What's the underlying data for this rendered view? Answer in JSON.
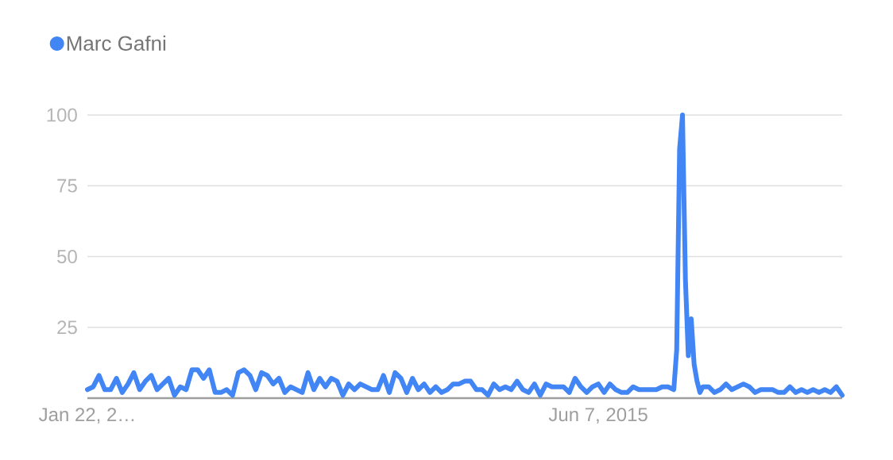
{
  "chart_data": {
    "type": "line",
    "x": [
      "2012-01-22",
      "2012-02-05",
      "2012-02-19",
      "2012-03-04",
      "2012-03-18",
      "2012-04-01",
      "2012-04-15",
      "2012-04-29",
      "2012-05-13",
      "2012-05-27",
      "2012-06-10",
      "2012-06-24",
      "2012-07-08",
      "2012-07-22",
      "2012-08-05",
      "2012-08-19",
      "2012-09-02",
      "2012-09-16",
      "2012-09-30",
      "2012-10-14",
      "2012-10-28",
      "2012-11-11",
      "2012-11-25",
      "2012-12-09",
      "2012-12-23",
      "2013-01-06",
      "2013-01-20",
      "2013-02-03",
      "2013-02-17",
      "2013-03-03",
      "2013-03-17",
      "2013-03-31",
      "2013-04-14",
      "2013-04-28",
      "2013-05-12",
      "2013-05-26",
      "2013-06-09",
      "2013-06-23",
      "2013-07-07",
      "2013-07-21",
      "2013-08-04",
      "2013-08-18",
      "2013-09-01",
      "2013-09-15",
      "2013-09-29",
      "2013-10-13",
      "2013-10-27",
      "2013-11-10",
      "2013-11-24",
      "2013-12-08",
      "2013-12-22",
      "2014-01-05",
      "2014-01-19",
      "2014-02-02",
      "2014-02-16",
      "2014-03-02",
      "2014-03-16",
      "2014-03-30",
      "2014-04-13",
      "2014-04-27",
      "2014-05-11",
      "2014-05-25",
      "2014-06-08",
      "2014-06-22",
      "2014-07-06",
      "2014-07-20",
      "2014-08-03",
      "2014-08-17",
      "2014-08-31",
      "2014-09-14",
      "2014-09-28",
      "2014-10-12",
      "2014-10-26",
      "2014-11-09",
      "2014-11-23",
      "2014-12-07",
      "2014-12-21",
      "2015-01-04",
      "2015-01-18",
      "2015-02-01",
      "2015-02-15",
      "2015-03-01",
      "2015-03-15",
      "2015-03-29",
      "2015-04-12",
      "2015-04-26",
      "2015-05-10",
      "2015-05-24",
      "2015-06-07",
      "2015-06-21",
      "2015-07-05",
      "2015-07-19",
      "2015-08-02",
      "2015-08-16",
      "2015-08-30",
      "2015-09-13",
      "2015-09-27",
      "2015-10-11",
      "2015-10-25",
      "2015-11-08",
      "2015-11-22",
      "2015-12-06",
      "2015-12-13",
      "2015-12-20",
      "2015-12-27",
      "2016-01-03",
      "2016-01-10",
      "2016-01-17",
      "2016-01-24",
      "2016-01-31",
      "2016-02-07",
      "2016-02-14",
      "2016-02-28",
      "2016-03-13",
      "2016-03-27",
      "2016-04-10",
      "2016-04-24",
      "2016-05-08",
      "2016-05-22",
      "2016-06-05",
      "2016-06-19",
      "2016-07-03",
      "2016-07-17",
      "2016-07-31",
      "2016-08-14",
      "2016-08-28",
      "2016-09-11",
      "2016-09-25",
      "2016-10-09",
      "2016-10-23",
      "2016-11-06",
      "2016-11-20",
      "2016-12-04",
      "2016-12-18",
      "2017-01-01",
      "2017-01-15"
    ],
    "series": [
      {
        "name": "Marc Gafni",
        "color": "#4285f4",
        "values": [
          3,
          4,
          8,
          3,
          3,
          7,
          2,
          5,
          9,
          3,
          6,
          8,
          3,
          5,
          7,
          1,
          4,
          3,
          10,
          10,
          7,
          10,
          2,
          2,
          3,
          1,
          9,
          10,
          8,
          3,
          9,
          8,
          5,
          7,
          2,
          4,
          3,
          2,
          9,
          3,
          7,
          4,
          7,
          6,
          1,
          5,
          3,
          5,
          4,
          3,
          3,
          8,
          2,
          9,
          7,
          2,
          7,
          3,
          5,
          2,
          4,
          2,
          3,
          5,
          5,
          6,
          6,
          3,
          3,
          1,
          5,
          3,
          4,
          3,
          6,
          3,
          2,
          5,
          1,
          5,
          4,
          4,
          4,
          2,
          7,
          4,
          2,
          4,
          5,
          2,
          5,
          3,
          2,
          2,
          4,
          3,
          3,
          3,
          3,
          4,
          4,
          3,
          17,
          88,
          100,
          42,
          15,
          28,
          12,
          6,
          2,
          4,
          4,
          2,
          3,
          5,
          3,
          4,
          5,
          4,
          2,
          3,
          3,
          3,
          2,
          2,
          4,
          2,
          3,
          2,
          3,
          2,
          3,
          2,
          4,
          1
        ]
      }
    ],
    "xlim": [
      "2012-01-22",
      "2017-01-15"
    ],
    "xticks": [
      {
        "value": "2012-01-22",
        "label": "Jan 22, 2…"
      },
      {
        "value": "2015-06-07",
        "label": "Jun 7, 2015"
      }
    ],
    "ylim": [
      0,
      100
    ],
    "yticks": [
      25,
      50,
      75,
      100
    ],
    "grid": "y",
    "legend": "top left"
  }
}
